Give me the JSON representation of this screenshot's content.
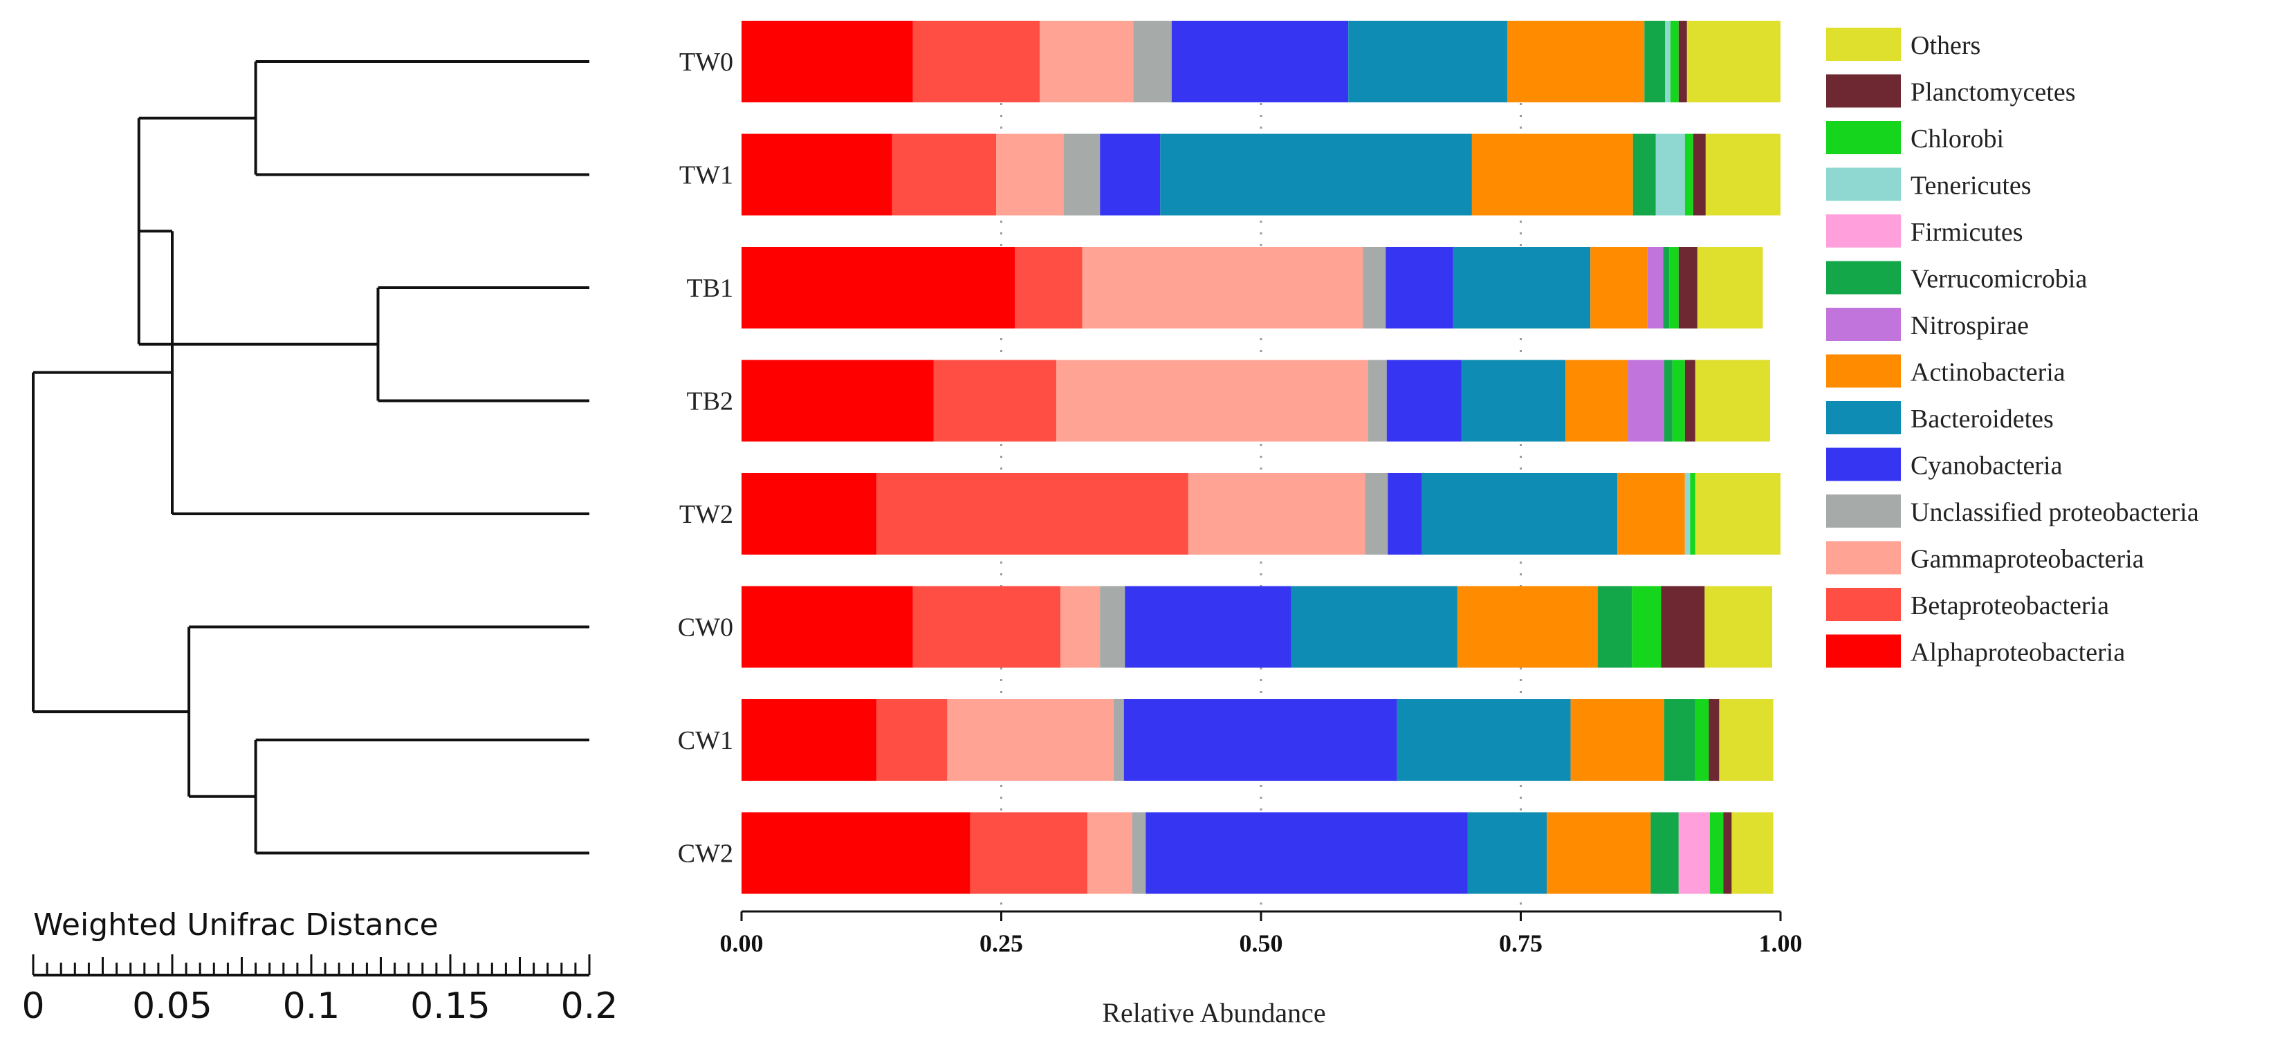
{
  "chart_data": {
    "type": "stacked-bar",
    "orientation": "horizontal",
    "xlabel": "Relative Abundance",
    "xlim": [
      0,
      1
    ],
    "xticks": [
      "0.00",
      "0.25",
      "0.50",
      "0.75",
      "1.00"
    ],
    "samples": [
      "TW0",
      "TW1",
      "TB1",
      "TB2",
      "TW2",
      "CW0",
      "CW1",
      "CW2"
    ],
    "taxa": [
      {
        "name": "Alphaproteobacteria",
        "color": "#ff0000"
      },
      {
        "name": "Betaproteobacteria",
        "color": "#ff4f45"
      },
      {
        "name": "Gammaproteobacteria",
        "color": "#ffa395"
      },
      {
        "name": "Unclassified proteobacteria",
        "color": "#a6aaa8"
      },
      {
        "name": "Cyanobacteria",
        "color": "#3636f2"
      },
      {
        "name": "Bacteroidetes",
        "color": "#0f8cb3"
      },
      {
        "name": "Actinobacteria",
        "color": "#ff8c00"
      },
      {
        "name": "Nitrospirae",
        "color": "#c074dc"
      },
      {
        "name": "Verrucomicrobia",
        "color": "#13a74a"
      },
      {
        "name": "Firmicutes",
        "color": "#ff9fdc"
      },
      {
        "name": "Tenericutes",
        "color": "#8fd8d2"
      },
      {
        "name": "Chlorobi",
        "color": "#15d61d"
      },
      {
        "name": "Planctomycetes",
        "color": "#6e2832"
      },
      {
        "name": "Others",
        "color": "#dfdf2e"
      }
    ],
    "values": {
      "TW0": [
        0.165,
        0.122,
        0.09,
        0.037,
        0.17,
        0.153,
        0.132,
        0,
        0.02,
        0,
        0.005,
        0.008,
        0.008,
        0.09
      ],
      "TW1": [
        0.145,
        0.1,
        0.065,
        0.035,
        0.058,
        0.3,
        0.155,
        0,
        0.022,
        0,
        0.028,
        0.008,
        0.012,
        0.072
      ],
      "TB1": [
        0.263,
        0.065,
        0.27,
        0.022,
        0.065,
        0.132,
        0.055,
        0.015,
        0.006,
        0,
        0,
        0.009,
        0.018,
        0.063
      ],
      "TB2": [
        0.185,
        0.118,
        0.3,
        0.018,
        0.072,
        0.1,
        0.06,
        0.035,
        0.008,
        0,
        0,
        0.012,
        0.01,
        0.072
      ],
      "TW2": [
        0.13,
        0.3,
        0.17,
        0.022,
        0.033,
        0.188,
        0.065,
        0,
        0,
        0,
        0.005,
        0.005,
        0,
        0.082
      ],
      "CW0": [
        0.165,
        0.142,
        0.038,
        0.024,
        0.16,
        0.16,
        0.135,
        0,
        0.033,
        0,
        0,
        0.028,
        0.042,
        0.065
      ],
      "CW1": [
        0.13,
        0.068,
        0.16,
        0.01,
        0.263,
        0.167,
        0.09,
        0,
        0.03,
        0,
        0,
        0.013,
        0.01,
        0.052
      ],
      "CW2": [
        0.22,
        0.113,
        0.043,
        0.013,
        0.31,
        0.076,
        0.1,
        0,
        0.027,
        0.03,
        0,
        0.013,
        0.008,
        0.04
      ]
    },
    "legend_order": [
      "Others",
      "Planctomycetes",
      "Chlorobi",
      "Tenericutes",
      "Firmicutes",
      "Verrucomicrobia",
      "Nitrospirae",
      "Actinobacteria",
      "Bacteroidetes",
      "Cyanobacteria",
      "Unclassified proteobacteria",
      "Gammaproteobacteria",
      "Betaproteobacteria",
      "Alphaproteobacteria"
    ],
    "dendrogram": {
      "title": "Weighted Unifrac Distance",
      "scale_ticks": [
        "0",
        "0.05",
        "0.1",
        "0.15",
        "0.2"
      ],
      "scale_range": [
        0,
        0.2
      ],
      "merges": [
        {
          "id": "a",
          "left": "TW0",
          "right": "TW1",
          "height": 0.08
        },
        {
          "id": "b",
          "left": "TB1",
          "right": "TB2",
          "height": 0.124
        },
        {
          "id": "c",
          "left": "a",
          "right": "b",
          "height": 0.038
        },
        {
          "id": "d",
          "left": "c",
          "right": "TW2",
          "height": 0.05
        },
        {
          "id": "e",
          "left": "CW1",
          "right": "CW2",
          "height": 0.08
        },
        {
          "id": "f",
          "left": "CW0",
          "right": "e",
          "height": 0.056
        },
        {
          "id": "g",
          "left": "d",
          "right": "f",
          "height": 0.0
        }
      ]
    }
  }
}
